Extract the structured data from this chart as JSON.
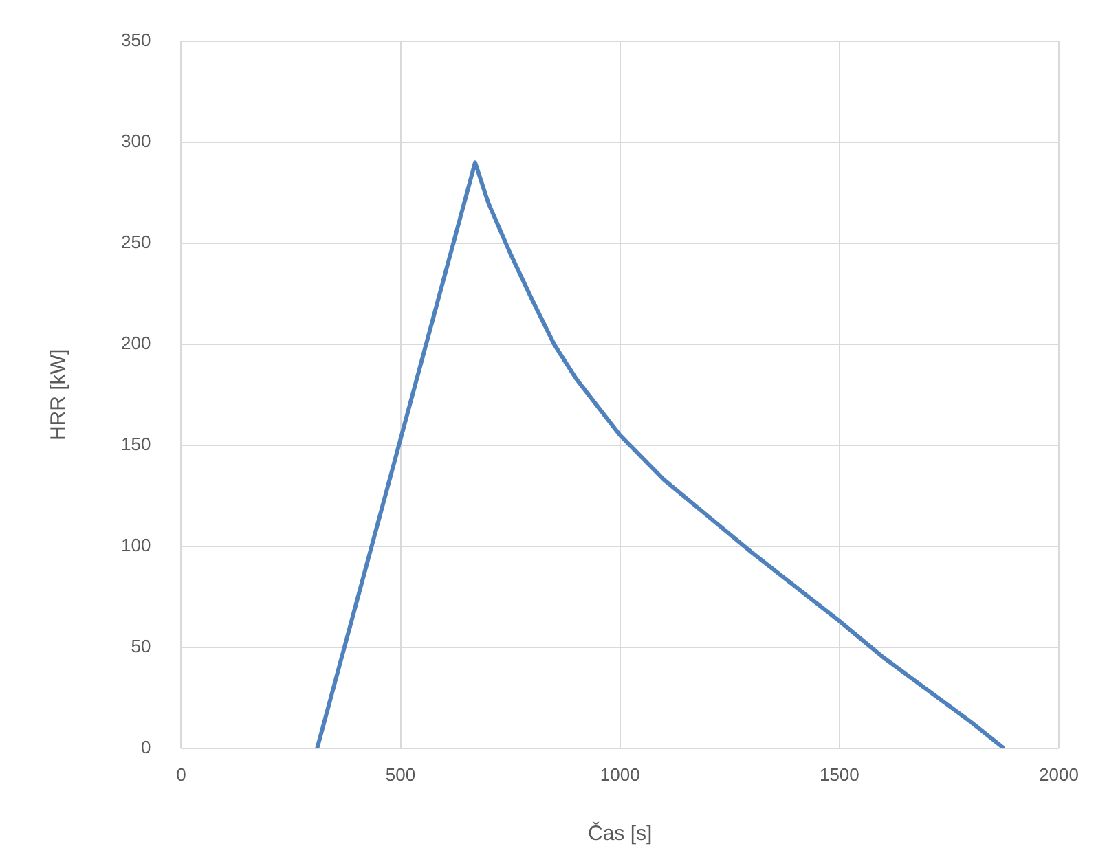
{
  "chart_data": {
    "type": "line",
    "xlabel": "Čas [s]",
    "ylabel": "HRR [kW]",
    "x": [
      310,
      670,
      700,
      750,
      800,
      850,
      900,
      1000,
      1100,
      1200,
      1300,
      1400,
      1500,
      1600,
      1700,
      1800,
      1875
    ],
    "series": [
      {
        "color": "#4f81bd",
        "values": [
          0,
          290,
          270,
          245,
          222,
          200,
          183,
          155,
          133,
          115,
          97,
          80,
          63,
          45,
          29,
          13,
          0
        ]
      }
    ],
    "xlim": [
      0,
      2000
    ],
    "xticks": [
      0,
      500,
      1000,
      1500,
      2000
    ],
    "ylim": [
      0,
      350
    ],
    "yticks": [
      0,
      50,
      100,
      150,
      200,
      250,
      300,
      350
    ],
    "grid": true,
    "legend": false,
    "marker": "none",
    "line_style": "solid"
  }
}
